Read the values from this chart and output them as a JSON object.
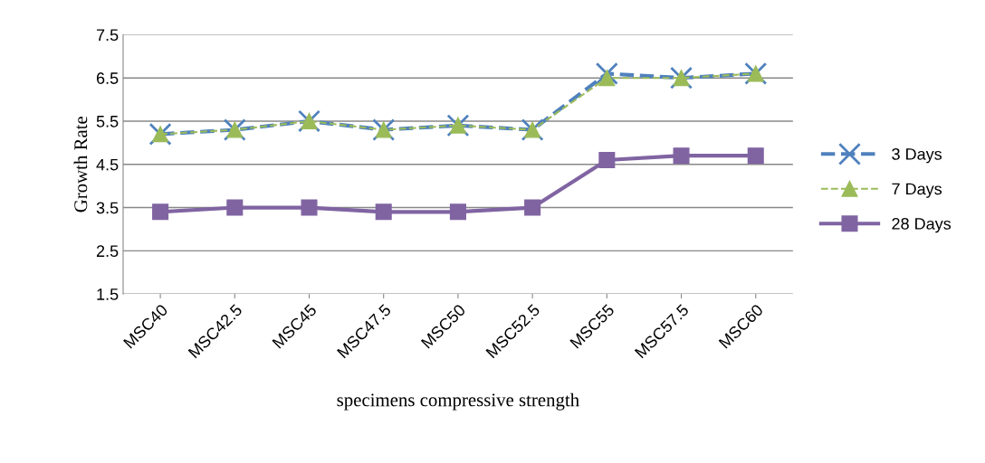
{
  "chart_data": {
    "type": "line",
    "xlabel": "specimens compressive strength",
    "ylabel": "Growth Rate",
    "categories": [
      "MSC40",
      "MSC42.5",
      "MSC45",
      "MSC47.5",
      "MSC50",
      "MSC52.5",
      "MSC55",
      "MSC57.5",
      "MSC60"
    ],
    "series": [
      {
        "name": "3 Days",
        "color": "#4f81bd",
        "marker": "cross",
        "line_style": "dashed",
        "values": [
          5.2,
          5.3,
          5.5,
          5.3,
          5.4,
          5.3,
          6.6,
          6.5,
          6.6
        ]
      },
      {
        "name": "7 Days",
        "color": "#9bbb59",
        "marker": "triangle",
        "line_style": "dashed",
        "values": [
          5.2,
          5.3,
          5.5,
          5.3,
          5.4,
          5.3,
          6.5,
          6.5,
          6.6
        ]
      },
      {
        "name": "28 Days",
        "color": "#8064a2",
        "marker": "square",
        "line_style": "solid",
        "values": [
          3.4,
          3.5,
          3.5,
          3.4,
          3.4,
          3.5,
          4.6,
          4.7,
          4.7
        ]
      }
    ],
    "ylim": [
      1.5,
      7.5
    ],
    "yticks": [
      {
        "value": 1.5,
        "label": "1.5"
      },
      {
        "value": 2.5,
        "label": "2.5"
      },
      {
        "value": 3.5,
        "label": "3.5"
      },
      {
        "value": 4.5,
        "label": "4.5"
      },
      {
        "value": 5.5,
        "label": "5.5"
      },
      {
        "value": 6.5,
        "label": "6.5"
      },
      {
        "value": 7.5,
        "label": "7.5"
      }
    ],
    "grid": "y",
    "legend": "right"
  }
}
